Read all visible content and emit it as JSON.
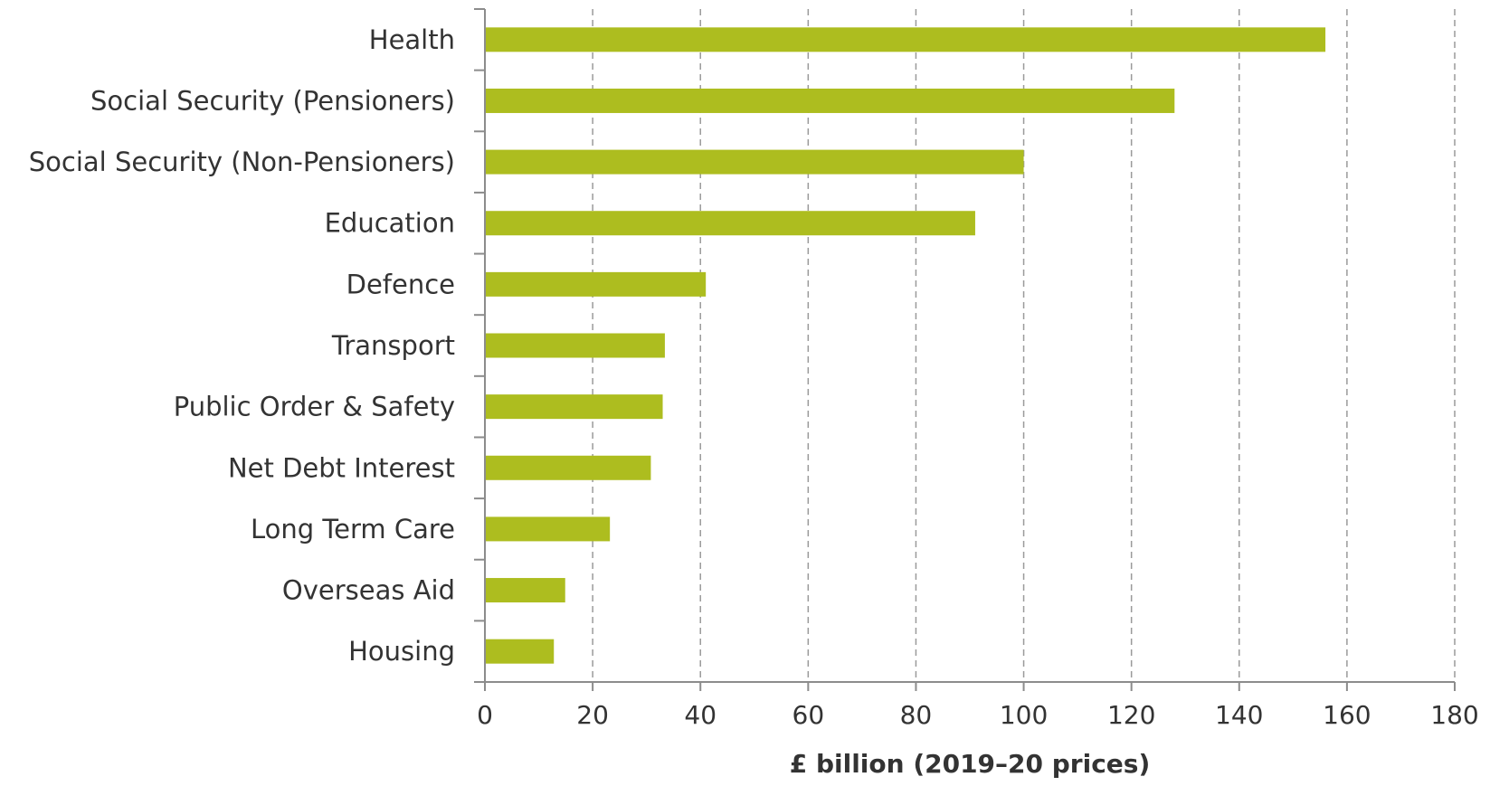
{
  "chart_data": {
    "type": "bar",
    "orientation": "horizontal",
    "categories": [
      "Health",
      "Social Security (Pensioners)",
      "Social Security (Non-Pensioners)",
      "Education",
      "Defence",
      "Transport",
      "Public Order & Safety",
      "Net Debt Interest",
      "Long Term Care",
      "Overseas Aid",
      "Housing"
    ],
    "values": [
      156,
      128,
      100,
      91,
      41,
      33.4,
      33,
      30.8,
      23.2,
      14.9,
      12.8
    ],
    "title": "",
    "xlabel": "£ billion (2019–20 prices)",
    "ylabel": "",
    "xlim": [
      0,
      180
    ],
    "xticks": [
      0,
      20,
      40,
      60,
      80,
      100,
      120,
      140,
      160,
      180
    ],
    "xtick_labels": [
      "0",
      "20",
      "40",
      "60",
      "80",
      "100",
      "120",
      "140",
      "160",
      "180"
    ],
    "grid": "vertical dashed",
    "legend": "none",
    "bar_color": "#adbd1f"
  }
}
